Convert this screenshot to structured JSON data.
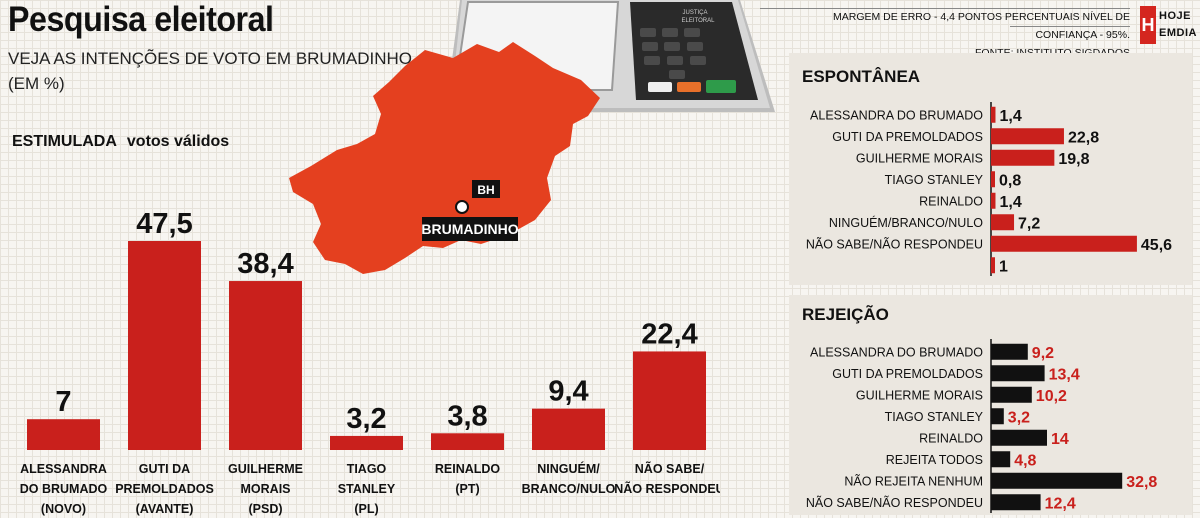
{
  "header": {
    "title": "Pesquisa eleitoral",
    "subtitle_line1": "VEJA AS INTENÇÕES DE VOTO EM BRUMADINHO",
    "subtitle_line2": "(EM %)",
    "margin_note": "MARGEM DE ERRO - 4,4 PONTOS PERCENTUAIS NÍVEL DE CONFIANÇA - 95%.",
    "source_note": "FONTE: INSTITUTO SIGDADOS",
    "logo_letter": "H",
    "logo_line1": "HOJE",
    "logo_line2": "EMDIA"
  },
  "map": {
    "label_bh": "BH",
    "label_city": "BRUMADINHO",
    "color": "#e4401f"
  },
  "urna": {
    "label_top": "JUSTIÇA",
    "label_bottom": "ELEITORAL"
  },
  "colors": {
    "bar_red": "#c9201c",
    "bar_black": "#111111",
    "value_red": "#c9201c"
  },
  "chart_data": [
    {
      "id": "estimulada",
      "type": "bar",
      "title": "ESTIMULADA",
      "subtitle": "votos válidos",
      "categories": [
        [
          "ALESSANDRA",
          "DO BRUMADO",
          "(NOVO)"
        ],
        [
          "GUTI DA",
          "PREMOLDADOS",
          "(AVANTE)"
        ],
        [
          "GUILHERME",
          "MORAIS",
          "(PSD)"
        ],
        [
          "TIAGO",
          "STANLEY",
          "(PL)"
        ],
        [
          "REINALDO",
          "(PT)"
        ],
        [
          "NINGUÉM/",
          "BRANCO/NULO"
        ],
        [
          "NÃO SABE/",
          "NÃO RESPONDEU"
        ]
      ],
      "values": [
        7,
        47.5,
        38.4,
        3.2,
        3.8,
        9.4,
        22.4
      ],
      "value_labels": [
        "7",
        "47,5",
        "38,4",
        "3,2",
        "3,8",
        "9,4",
        "22,4"
      ],
      "ylim": [
        0,
        50
      ],
      "grid": false
    },
    {
      "id": "espontanea",
      "type": "bar",
      "orientation": "horizontal",
      "title": "ESPONTÂNEA",
      "categories": [
        "ALESSANDRA DO BRUMADO",
        "GUTI DA PREMOLDADOS",
        "GUILHERME MORAIS",
        "TIAGO STANLEY",
        "REINALDO",
        "NINGUÉM/BRANCO/NULO",
        "NÃO SABE/NÃO RESPONDEU",
        ""
      ],
      "values": [
        1.4,
        22.8,
        19.8,
        0.8,
        1.4,
        7.2,
        45.6,
        1
      ],
      "value_labels": [
        "1,4",
        "22,8",
        "19,8",
        "0,8",
        "1,4",
        "7,2",
        "45,6",
        "1"
      ],
      "xlim": [
        0,
        50
      ]
    },
    {
      "id": "rejeicao",
      "type": "bar",
      "orientation": "horizontal",
      "title": "REJEIÇÃO",
      "categories": [
        "ALESSANDRA DO BRUMADO",
        "GUTI DA PREMOLDADOS",
        "GUILHERME MORAIS",
        "TIAGO STANLEY",
        "REINALDO",
        "REJEITA TODOS",
        "NÃO REJEITA NENHUM",
        "NÃO SABE/NÃO RESPONDEU"
      ],
      "values": [
        9.2,
        13.4,
        10.2,
        3.2,
        14,
        4.8,
        32.8,
        12.4
      ],
      "value_labels": [
        "9,2",
        "13,4",
        "10,2",
        "3,2",
        "14",
        "4,8",
        "32,8",
        "12,4"
      ],
      "xlim": [
        0,
        40
      ]
    }
  ]
}
